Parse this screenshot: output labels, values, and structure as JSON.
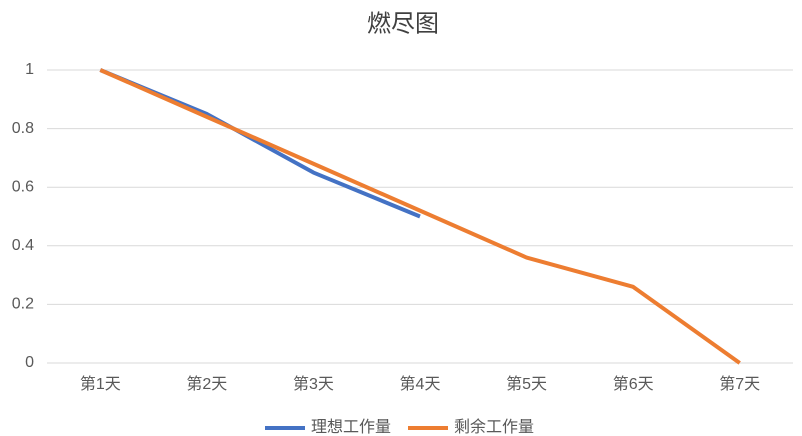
{
  "chart_data": {
    "type": "line",
    "title": "燃尽图",
    "categories": [
      "第1天",
      "第2天",
      "第3天",
      "第4天",
      "第5天",
      "第6天",
      "第7天"
    ],
    "series": [
      {
        "name": "理想工作量",
        "color": "#4472c4",
        "values": [
          1,
          0.85,
          0.65,
          0.5,
          null,
          null,
          null
        ]
      },
      {
        "name": "剩余工作量",
        "color": "#ed7d31",
        "values": [
          1,
          0.84,
          0.68,
          0.52,
          0.36,
          0.26,
          0
        ]
      }
    ],
    "ylim": [
      0,
      1
    ],
    "yticks": [
      0,
      0.2,
      0.4,
      0.6,
      0.8,
      1
    ],
    "grid": true,
    "legend": "bottom"
  }
}
